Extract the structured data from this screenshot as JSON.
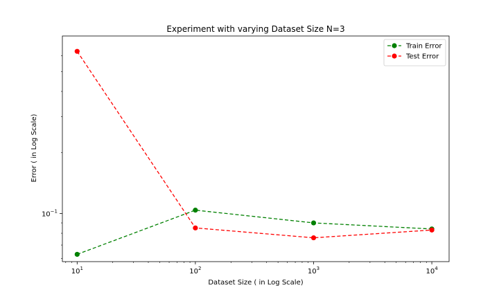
{
  "chart_data": {
    "type": "line",
    "title": "Experiment with varying Dataset Size N=3",
    "xlabel": "Dataset Size ( in Log Scale)",
    "ylabel": "Error ( in Log Scale)",
    "x_scale": "log",
    "y_scale": "log",
    "x": [
      10,
      100,
      1000,
      10000
    ],
    "xlim": [
      7.5,
      14000
    ],
    "ylim": [
      0.058,
      0.75
    ],
    "x_ticks": [
      {
        "value": 10,
        "base": "10",
        "exp": "1"
      },
      {
        "value": 100,
        "base": "10",
        "exp": "2"
      },
      {
        "value": 1000,
        "base": "10",
        "exp": "3"
      },
      {
        "value": 10000,
        "base": "10",
        "exp": "4"
      }
    ],
    "y_major_ticks": [
      {
        "value": 0.1,
        "base": "10",
        "exp": "−1"
      }
    ],
    "y_minor_ticks": [
      0.06,
      0.07,
      0.08,
      0.09,
      0.2,
      0.3,
      0.4,
      0.5,
      0.6
    ],
    "grid": false,
    "legend_position": "top-right",
    "series": [
      {
        "name": "Train Error",
        "color": "#008000",
        "style": "dashed",
        "marker": "circle",
        "values": [
          0.063,
          0.104,
          0.09,
          0.084
        ]
      },
      {
        "name": "Test Error",
        "color": "#ff0000",
        "style": "dashed",
        "marker": "circle",
        "values": [
          0.63,
          0.085,
          0.076,
          0.083
        ]
      }
    ]
  }
}
